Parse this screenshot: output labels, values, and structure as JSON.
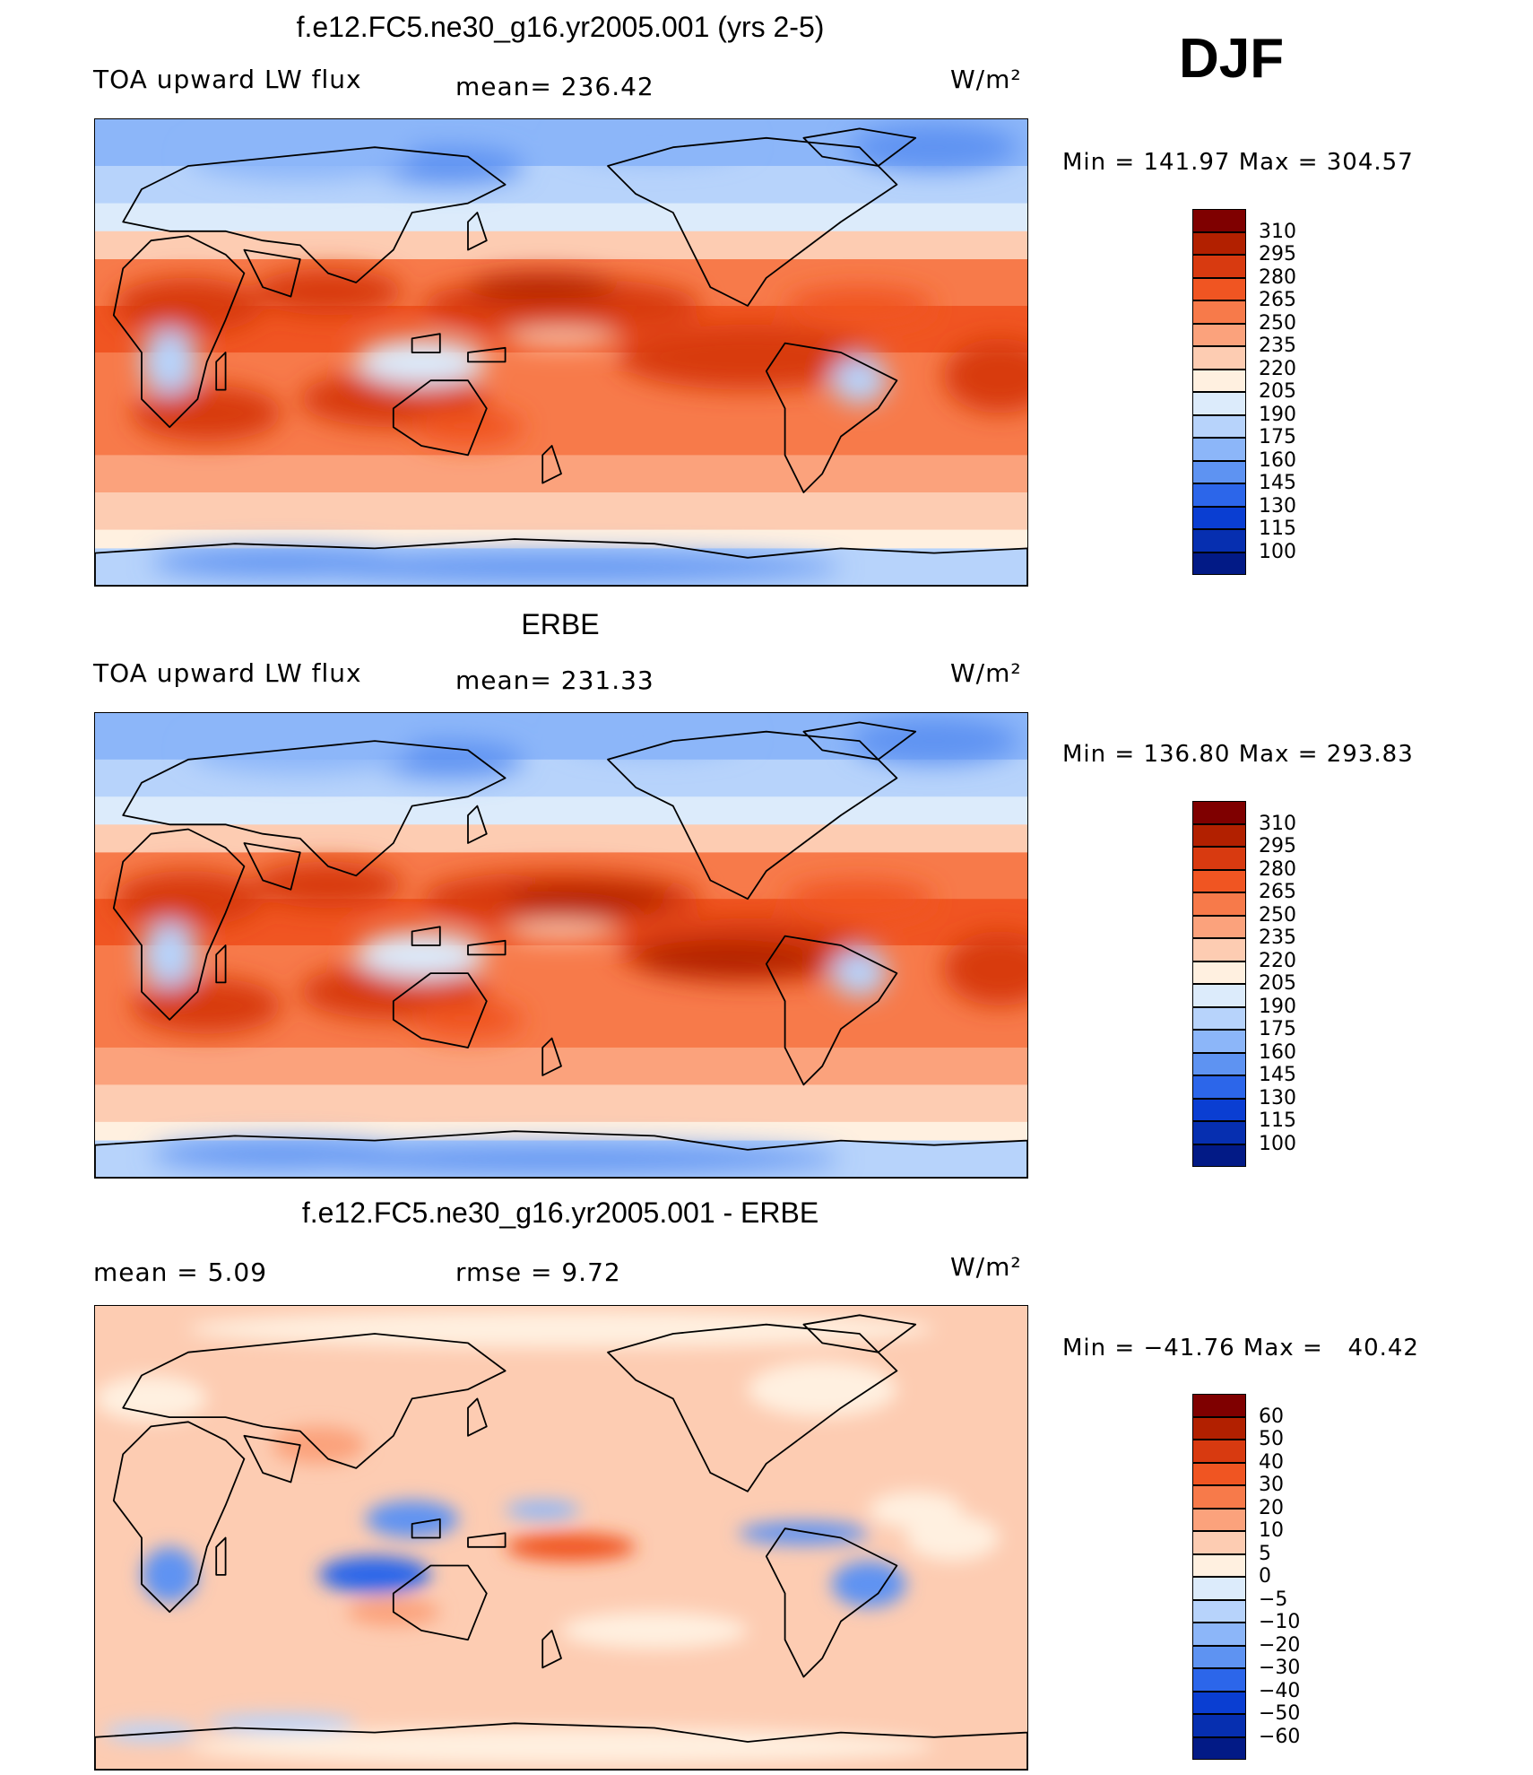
{
  "season": "DJF",
  "chart_data": [
    {
      "type": "heatmap",
      "title": "f.e12.FC5.ne30_g16.yr2005.001 (yrs 2-5)",
      "left_label": "TOA upward LW flux",
      "center_label": "mean= 236.42",
      "units": "W/m²",
      "min_max": "Min = 141.97 Max = 304.57",
      "mean": 236.42,
      "min": 141.97,
      "max": 304.57,
      "colorbar_levels": [
        "310",
        "295",
        "280",
        "265",
        "250",
        "235",
        "220",
        "205",
        "190",
        "175",
        "160",
        "145",
        "130",
        "115",
        "100"
      ]
    },
    {
      "type": "heatmap",
      "title": "ERBE",
      "left_label": "TOA upward LW flux",
      "center_label": "mean= 231.33",
      "units": "W/m²",
      "min_max": "Min = 136.80 Max = 293.83",
      "mean": 231.33,
      "min": 136.8,
      "max": 293.83,
      "colorbar_levels": [
        "310",
        "295",
        "280",
        "265",
        "250",
        "235",
        "220",
        "205",
        "190",
        "175",
        "160",
        "145",
        "130",
        "115",
        "100"
      ]
    },
    {
      "type": "heatmap",
      "title": "f.e12.FC5.ne30_g16.yr2005.001 - ERBE",
      "left_label": "mean =     5.09",
      "center_label": "rmse =     9.72",
      "units": "W/m²",
      "min_max": "Min = −41.76 Max =   40.42",
      "mean": 5.09,
      "rmse": 9.72,
      "min": -41.76,
      "max": 40.42,
      "colorbar_levels": [
        "60",
        "50",
        "40",
        "30",
        "20",
        "10",
        "5",
        "0",
        "−5",
        "−10",
        "−20",
        "−30",
        "−40",
        "−50",
        "−60"
      ]
    }
  ],
  "colors": {
    "abs_scale": [
      "#7f0000",
      "#b22000",
      "#d83a10",
      "#f05522",
      "#f77a4a",
      "#fba27c",
      "#fdccb2",
      "#fff0e0",
      "#dcebfb",
      "#b7d3fb",
      "#8cb6f9",
      "#5e93f2",
      "#2c66ea",
      "#0a3ed2",
      "#062fb0",
      "#021a86"
    ],
    "diff_scale": [
      "#7f0000",
      "#b22000",
      "#d83a10",
      "#f05522",
      "#f77a4a",
      "#fba27c",
      "#fdccb2",
      "#fff0e0",
      "#dcebfb",
      "#b7d3fb",
      "#8cb6f9",
      "#5e93f2",
      "#2c66ea",
      "#0a3ed2",
      "#062fb0",
      "#021a86"
    ]
  }
}
